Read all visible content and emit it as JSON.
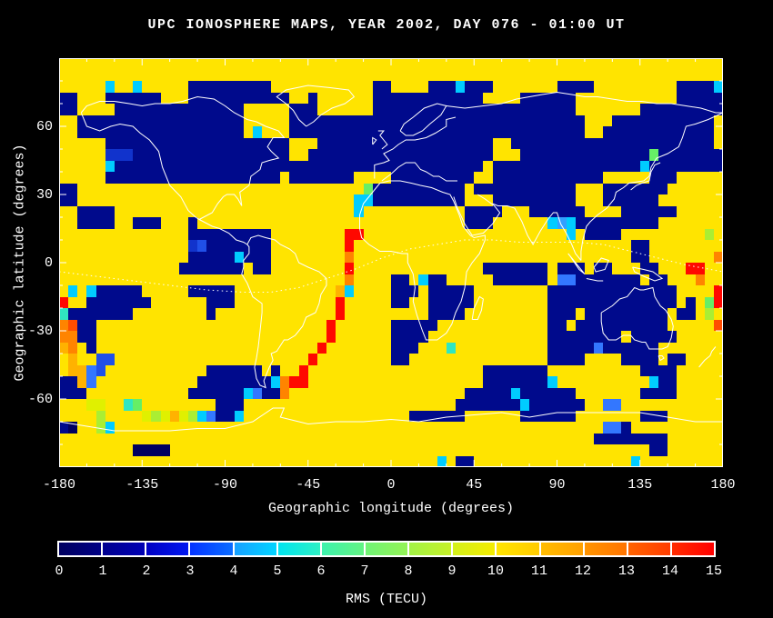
{
  "title": {
    "text": "UPC IONOSPHERE MAPS, YEAR 2002, DAY 076 - 01:00 UT"
  },
  "axes": {
    "x": {
      "label": "Geographic longitude (degrees)",
      "ticks": [
        -180,
        -135,
        -90,
        -45,
        0,
        45,
        90,
        135,
        180
      ],
      "minor_step": 15,
      "range": [
        -180,
        180
      ]
    },
    "y": {
      "label": "Geographic latitude (degrees)",
      "ticks": [
        60,
        30,
        0,
        -30,
        -60
      ],
      "minor_step": 10,
      "range": [
        -90,
        90
      ]
    }
  },
  "colorbar": {
    "label": "RMS (TECU)",
    "tick_labels": [
      "0",
      "1",
      "2",
      "3",
      "4",
      "5",
      "6",
      "7",
      "8",
      "9",
      "10",
      "11",
      "12",
      "13",
      "14",
      "15"
    ],
    "segments": [
      [
        "#000060",
        "#000085"
      ],
      [
        "#00008f",
        "#0000b4"
      ],
      [
        "#0000c3",
        "#0017ef"
      ],
      [
        "#0433ff",
        "#0a6cff"
      ],
      [
        "#18a0ff",
        "#00d4ff"
      ],
      [
        "#00e4ef",
        "#2df0c4"
      ],
      [
        "#3df2ad",
        "#62f383"
      ],
      [
        "#70f376",
        "#93f355"
      ],
      [
        "#a2f246",
        "#c6f128"
      ],
      [
        "#d3f01c",
        "#f4ec00"
      ],
      [
        "#ffe400",
        "#ffcb00"
      ],
      [
        "#ffbc00",
        "#ffa000"
      ],
      [
        "#ff9400",
        "#ff7400"
      ],
      [
        "#ff6400",
        "#ff3c00"
      ],
      [
        "#ff2c00",
        "#ff0000"
      ]
    ]
  },
  "chart_data": {
    "type": "heatmap",
    "title": "UPC IONOSPHERE MAPS, YEAR 2002, DAY 076 - 01:00 UT",
    "xlabel": "Geographic longitude (degrees)",
    "ylabel": "Geographic latitude (degrees)",
    "value_label": "RMS (TECU)",
    "unit": "TECU",
    "value_range": [
      0,
      15
    ],
    "lon_range": [
      -180,
      180
    ],
    "lat_range": [
      90,
      -90
    ],
    "cell_size_deg": 5,
    "grid_note": "Approximate 72x36 RMS grid read from the image; rows run from lat 90 (top) to -90 (bottom), cols from lon -180 to 180. Chars map to palette values in TECU.",
    "palette": {
      ".": {
        "value": 10.5,
        "color": "#ffe400"
      },
      "k": {
        "value": 0,
        "color": "#000060"
      },
      "N": {
        "value": 0.5,
        "color": "#000a8c"
      },
      "n": {
        "value": 1.5,
        "color": "#1133cc"
      },
      "b": {
        "value": 2.5,
        "color": "#2050e8"
      },
      "l": {
        "value": 3.5,
        "color": "#3377ff"
      },
      "s": {
        "value": 4.5,
        "color": "#33a0ff"
      },
      "c": {
        "value": 5.5,
        "color": "#00ccff"
      },
      "t": {
        "value": 6.5,
        "color": "#30e6c0"
      },
      "g": {
        "value": 7.5,
        "color": "#66ee66"
      },
      "G": {
        "value": 8.5,
        "color": "#aaee33"
      },
      "y": {
        "value": 9.5,
        "color": "#e0f000"
      },
      "o": {
        "value": 11.5,
        "color": "#ffb200"
      },
      "O": {
        "value": 12.5,
        "color": "#ff8400"
      },
      "R": {
        "value": 13.5,
        "color": "#ff4d00"
      },
      "r": {
        "value": 14.5,
        "color": "#ff0800"
      }
    },
    "rows": [
      "........................................................................",
      "........................................................................",
      ".....c..c.....NNNNNNNNN...........NN....NNNcNNN.......NNNN.........NNNNc",
      "NN...NNNNNN...NNNNNNNNNNN..N......NNNNNNNNNNNN....NNNNNN...........NNNNN",
      "NN....NNNNNNNNNNNNNN.....NNN......NNNNNNNNNNNNNNNNNNNNNN.......NNNNNNNNN",
      "..NNNNNNNNNNNNNNNNNN.....NNNNNNNNNNNNNNNNNNNNNNNNNNNNNNNN...NNNNNNNNNNN",
      "..NNNNNNNNNNNNNNNNNN.c...NNNNNNNNNNNNNNNNNNNNNNNNNNNNNNNN..NNNNNNNNNNNN",
      ".....NNNNNNNNNNNNNNNNNNNN...NNNNNNNNNNNNNNNNNNN..NNNNNNNNNNNNNNNNNNNNNN",
      ".....nnnNNNNNNNNNNNNNNNNN..NNNNNNNNNNNNNNNNNNNN...NNNNNNNNNNNNNNgNNNNNNN",
      ".....cNNNNNNNNNNNNNNNNNNNNNNNNNNNNNNNNNNNNNNNN.NNNNNNNNNNNNNNNNcNNNNNNNN",
      ".....NNNNNNNNNNNNNNNNNNN.NNNNNNN....NNNNNNNNN..NNNNNNNNNNNN.....NNN.....",
      "NN...............................gNNNNNNNNNN.NNNNNNNNNNN...NNNNNNN......",
      "NN..............................ccNNNNNNNNNN...NNNNNNNNN...NNNNNN.......",
      "..NNNN..........................c...........NNNN...NNNNNN....NNNNNN.....",
      "..NNNN..NNN...N.............................NNN......cscNNNNNNNNN.......",
      "..............NNNNNNNNN........rr......................c.NNNN.........G.",
      "..............nbNNNNNNN........r..............................NN........",
      "..............NNNNNcNNN........O..............................NN.......O",
      ".............NNNNNNN.NN........r..............NNNNNNN.NNN.NN...NN...rr..",
      "...............................O....NN.cNN.....NNNNNN.llNNNNNNN.NN...O..",
      ".c.cNNNNN.....NNNNN...........oc....NNN.NNNNN........NNNNNNNNNNNNNN....r",
      "r..NNNNNNN......NNN...........r.....NN..NNNNN........NNNNNNNNNNNNNN.N.gr",
      "tNNNNNNN........N.............r.........NNNN.........NNN.NNNNNNNNN.NN.G.",
      "ORNN.........................r......NNNNN............NN.NNNNNNNNNN.....R",
      "OONN.........................r......NNNN.............NNNNNNNN.NNNNN.....",
      "oO.N........................r.......NNN...t..........NNNNNlNNNNNN.......",
      ".o..bb.....................r........NN...............NNNN....NNNN.NN....",
      ".oolb...........NNNNNN.N..r...................NNNNNNN..........NNNN.....",
      "NNol...........NNNNNNNNcOrr...................NNNNNNNc..........cNN.....",
      "NNN...........NNNNNNclNNO...................NNNNNcNNNNNN.......NNNN.....",
      "...yy..tg........NNN.......................NNNNNNNcNNNNNN..ll...........",
      "....G....yGyoyGclNNc..................NNNNNN......NNNNNN.......NNN......",
      "Nk..Gc.....................................................llN..........",
      "..........................................................NNNNNNNN......",
      "........kkkk....................................................NN......",
      ".........................................c.NN.................c........."
    ]
  }
}
